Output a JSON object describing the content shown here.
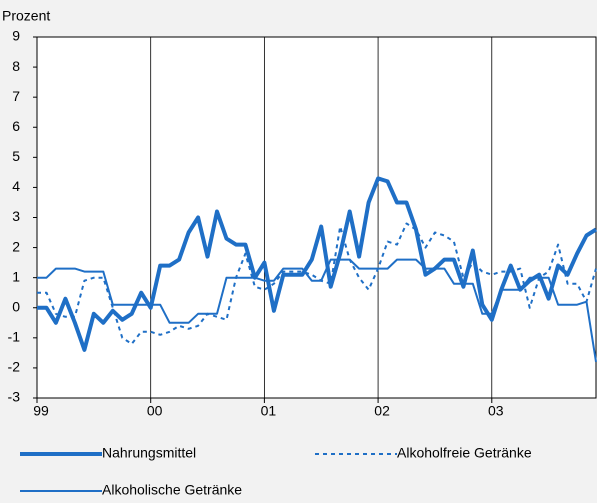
{
  "chart_data": {
    "type": "line",
    "y_label": "Prozent",
    "categories": [
      "99",
      null,
      null,
      null,
      null,
      null,
      null,
      null,
      null,
      null,
      null,
      null,
      "00",
      null,
      null,
      null,
      null,
      null,
      null,
      null,
      null,
      null,
      null,
      null,
      "01",
      null,
      null,
      null,
      null,
      null,
      null,
      null,
      null,
      null,
      null,
      null,
      "02",
      null,
      null,
      null,
      null,
      null,
      null,
      null,
      null,
      null,
      null,
      null,
      "03",
      null,
      null,
      null,
      null,
      null,
      null,
      null,
      null,
      null,
      null,
      null
    ],
    "series": [
      {
        "name": "Nahrungsmittel",
        "color": "#1f6fc6",
        "style": "thick",
        "values": [
          0.0,
          0.0,
          -0.5,
          0.3,
          -0.5,
          -1.4,
          -0.2,
          -0.5,
          -0.1,
          -0.4,
          -0.2,
          0.5,
          0.0,
          1.4,
          1.4,
          1.6,
          2.5,
          3.0,
          1.7,
          3.2,
          2.3,
          2.1,
          2.1,
          1.0,
          1.5,
          -0.1,
          1.1,
          1.1,
          1.1,
          1.6,
          2.7,
          0.7,
          1.8,
          3.2,
          1.7,
          3.5,
          4.3,
          4.2,
          3.5,
          3.5,
          2.6,
          1.1,
          1.3,
          1.6,
          1.6,
          0.7,
          1.9,
          0.1,
          -0.4,
          0.6,
          1.4,
          0.6,
          0.9,
          1.1,
          0.3,
          1.4,
          1.1,
          1.8,
          2.4,
          2.6
        ]
      },
      {
        "name": "Alkoholfreie Getränke",
        "color": "#1f6fc6",
        "style": "dotted",
        "values": [
          0.5,
          0.5,
          -0.2,
          -0.3,
          -0.3,
          0.9,
          1.0,
          1.0,
          0.0,
          -1.0,
          -1.2,
          -0.8,
          -0.8,
          -0.9,
          -0.8,
          -0.6,
          -0.7,
          -0.6,
          -0.2,
          -0.3,
          -0.4,
          1.0,
          1.8,
          0.7,
          0.6,
          0.8,
          1.2,
          1.2,
          1.2,
          1.1,
          0.9,
          0.8,
          2.7,
          1.6,
          1.0,
          0.6,
          1.3,
          2.2,
          2.1,
          2.8,
          2.6,
          2.0,
          2.5,
          2.4,
          2.2,
          1.0,
          1.5,
          1.2,
          1.1,
          1.2,
          1.2,
          1.3,
          0.0,
          1.0,
          1.2,
          2.1,
          0.8,
          0.8,
          0.2,
          1.3
        ]
      },
      {
        "name": "Alkoholische Getränke",
        "color": "#1f6fc6",
        "style": "thin",
        "values": [
          1.0,
          1.0,
          1.3,
          1.3,
          1.3,
          1.2,
          1.2,
          1.2,
          0.1,
          0.1,
          0.1,
          0.1,
          0.1,
          0.1,
          -0.5,
          -0.5,
          -0.5,
          -0.2,
          -0.2,
          -0.2,
          1.0,
          1.0,
          1.0,
          1.0,
          0.9,
          0.9,
          1.3,
          1.3,
          1.3,
          0.9,
          0.9,
          1.6,
          1.6,
          1.6,
          1.3,
          1.3,
          1.3,
          1.3,
          1.6,
          1.6,
          1.6,
          1.3,
          1.3,
          1.3,
          0.8,
          0.8,
          0.8,
          -0.2,
          -0.2,
          0.6,
          0.6,
          0.6,
          1.0,
          1.0,
          1.0,
          0.1,
          0.1,
          0.1,
          0.2,
          -1.8
        ]
      }
    ],
    "ylim": [
      -3,
      9
    ],
    "yticks": [
      -3,
      -2,
      -1,
      0,
      1,
      2,
      3,
      4,
      5,
      6,
      7,
      8,
      9
    ],
    "grid": "x"
  }
}
